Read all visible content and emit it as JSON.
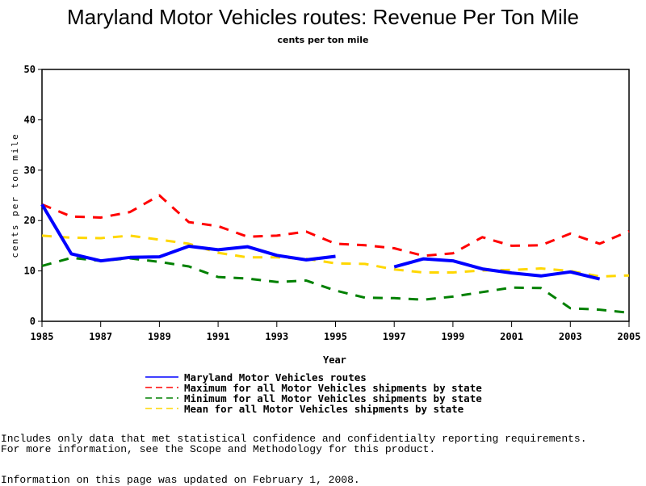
{
  "chart_data": {
    "type": "line",
    "title": "Maryland Motor Vehicles routes: Revenue Per Ton Mile",
    "subtitle": "cents per ton mile",
    "xlabel": "Year",
    "ylabel": "cents per ton mile",
    "xlim": [
      1985,
      2005
    ],
    "ylim": [
      0,
      50
    ],
    "x_ticks": [
      "1985",
      "1987",
      "1989",
      "1991",
      "1993",
      "1995",
      "1997",
      "1999",
      "2001",
      "2003",
      "2005"
    ],
    "y_ticks": [
      "0",
      "10",
      "20",
      "30",
      "40",
      "50"
    ],
    "grid": false,
    "legend_position": "bottom",
    "x": [
      1985,
      1986,
      1987,
      1988,
      1989,
      1990,
      1991,
      1992,
      1993,
      1994,
      1995,
      1996,
      1997,
      1998,
      1999,
      2000,
      2001,
      2002,
      2003,
      2004,
      2005
    ],
    "series": [
      {
        "name": "Maryland Motor Vehicles routes",
        "color": "#0000ff",
        "style": "solid",
        "values": [
          23.2,
          13.4,
          12.0,
          12.7,
          12.8,
          14.9,
          14.2,
          14.8,
          13.1,
          12.2,
          12.9,
          null,
          10.8,
          12.4,
          12.0,
          10.4,
          9.6,
          9.0,
          9.8,
          8.4,
          null
        ]
      },
      {
        "name": "Maximum for all Motor Vehicles shipments by state",
        "color": "#ff0000",
        "style": "dashed",
        "values": [
          23.2,
          20.8,
          20.6,
          21.7,
          25.0,
          19.7,
          18.9,
          16.8,
          17.0,
          17.8,
          15.4,
          15.1,
          14.5,
          13.0,
          13.5,
          16.7,
          15.0,
          15.1,
          17.4,
          15.4,
          17.9
        ]
      },
      {
        "name": "Minimum for all Motor Vehicles shipments by state",
        "color": "#008000",
        "style": "dashed",
        "values": [
          11.0,
          12.6,
          12.0,
          12.5,
          11.8,
          10.9,
          8.8,
          8.5,
          7.8,
          8.1,
          6.1,
          4.7,
          4.6,
          4.3,
          4.9,
          5.8,
          6.7,
          6.6,
          2.6,
          2.3,
          1.7
        ]
      },
      {
        "name": "Mean for all Motor Vehicles shipments by state",
        "color": "#ffd700",
        "style": "dashed",
        "values": [
          17.0,
          16.6,
          16.5,
          17.0,
          16.2,
          15.4,
          13.6,
          12.7,
          12.7,
          12.4,
          11.5,
          11.4,
          10.3,
          9.7,
          9.7,
          10.1,
          10.2,
          10.5,
          10.0,
          8.9,
          9.1
        ]
      }
    ]
  },
  "footnotes": {
    "line1": "Includes only data that met statistical confidence and confidentialty reporting requirements.",
    "line2": "For more information, see the Scope and Methodology for this product.",
    "updated": "Information on this page was updated on February 1, 2008."
  }
}
